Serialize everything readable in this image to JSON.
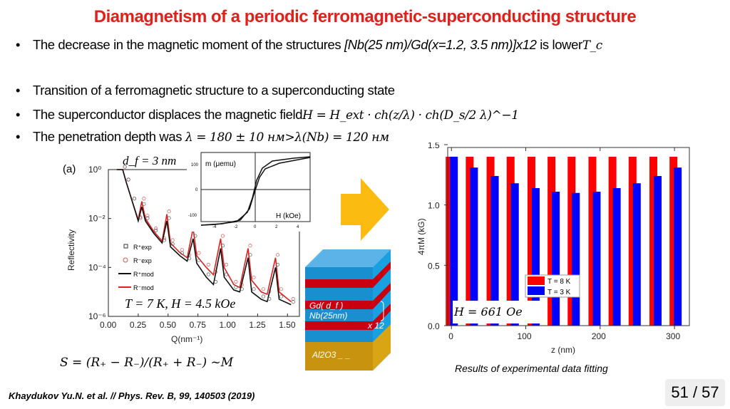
{
  "title": "Diamagnetism of a periodic ferromagnetic-superconducting structure",
  "bullets": [
    {
      "text": "The decrease in the magnetic moment of the structures ",
      "italic": "[Nb(25 nm)/Gd(x=1.2, 3.5 nm)]x12",
      "tail": " is lower",
      "math": "T_c"
    },
    {
      "text": "Transition of a ferromagnetic structure to a superconducting state"
    },
    {
      "text": "The superconductor displaces the magnetic field",
      "math": "H = H_ext · ch(z/λ) · ch(D_s/2 λ)^−1"
    },
    {
      "text": "The penetration depth was ",
      "math": "λ = 180 ± 10 нм>λ(Nb) = 120 нм"
    }
  ],
  "left_panel": {
    "panel_label": "(a)",
    "annotation_df": "d_f = 3 nm",
    "annotation_conditions": "T = 7 К, H = 4.5 kOe",
    "formula": "S = (R₊ − R₋)/(R₊ + R₋) ~M"
  },
  "inset": {
    "ylabel": "m (μemu)",
    "xlabel": "H (kOe)",
    "yticks": [
      "100",
      "0",
      "-100"
    ],
    "xticks": [
      "-4",
      "-2",
      "0",
      "2",
      "4"
    ]
  },
  "structure": {
    "layer_gd": "Gd( d_f )",
    "layer_nb": "Nb(25nm)",
    "repeat": "x 12",
    "substrate": "Al2O3 _ _",
    "colors": {
      "nb": "#1a8fd0",
      "gd": "#c8000f",
      "substrate": "#c8930e"
    }
  },
  "arrow_color": "#fbbb10",
  "caption": "Results of experimental data fitting",
  "citation": "Khaydukov Yu.N. et al. // Phys. Rev. B, 99, 140503 (2019)",
  "page": "51 / 57",
  "chart_data": [
    {
      "type": "line",
      "xlabel": "Q(nm⁻¹)",
      "ylabel": "Reflectivity",
      "xlim": [
        0,
        1.6
      ],
      "ylim": [
        1e-06,
        1
      ],
      "yscale": "log",
      "xticks": [
        "0.00",
        "0.25",
        "0.50",
        "0.75",
        "1.00",
        "1.25",
        "1.50"
      ],
      "yticks": [
        "10⁰",
        "10⁻²",
        "10⁻⁴",
        "10⁻⁶"
      ],
      "legend": [
        "R⁺exp",
        "R⁻exp",
        "R⁺mod",
        "R⁻mod"
      ],
      "legend_position": "left",
      "series": [
        {
          "name": "R⁻mod",
          "color": "#e02020",
          "points": [
            [
              0.07,
              1
            ],
            [
              0.12,
              1
            ],
            [
              0.15,
              0.3
            ],
            [
              0.2,
              0.05
            ],
            [
              0.25,
              0.009
            ],
            [
              0.28,
              0.05
            ],
            [
              0.31,
              0.01
            ],
            [
              0.38,
              0.003
            ],
            [
              0.45,
              0.0012
            ],
            [
              0.49,
              0.015
            ],
            [
              0.52,
              0.001
            ],
            [
              0.6,
              0.0004
            ],
            [
              0.66,
              0.00025
            ],
            [
              0.71,
              0.004
            ],
            [
              0.74,
              0.0003
            ],
            [
              0.82,
              0.0001
            ],
            [
              0.88,
              5e-05
            ],
            [
              0.94,
              0.0015
            ],
            [
              0.97,
              0.0001
            ],
            [
              1.05,
              2e-05
            ],
            [
              1.1,
              1.5e-05
            ],
            [
              1.17,
              0.0006
            ],
            [
              1.2,
              3e-05
            ],
            [
              1.28,
              1e-05
            ],
            [
              1.33,
              8e-06
            ],
            [
              1.4,
              0.00025
            ],
            [
              1.43,
              1e-05
            ],
            [
              1.53,
              4e-06
            ]
          ]
        },
        {
          "name": "R⁺mod",
          "color": "#111111",
          "points": [
            [
              0.07,
              1
            ],
            [
              0.12,
              1
            ],
            [
              0.15,
              0.3
            ],
            [
              0.2,
              0.05
            ],
            [
              0.25,
              0.008
            ],
            [
              0.28,
              0.03
            ],
            [
              0.31,
              0.008
            ],
            [
              0.38,
              0.0025
            ],
            [
              0.45,
              0.001
            ],
            [
              0.49,
              0.008
            ],
            [
              0.52,
              0.0007
            ],
            [
              0.6,
              0.0003
            ],
            [
              0.66,
              0.00018
            ],
            [
              0.71,
              0.0015
            ],
            [
              0.74,
              0.00015
            ],
            [
              0.82,
              4e-05
            ],
            [
              0.88,
              2e-05
            ],
            [
              0.94,
              0.0006
            ],
            [
              0.97,
              4e-05
            ],
            [
              1.05,
              1.2e-05
            ],
            [
              1.1,
              1e-05
            ],
            [
              1.17,
              0.00025
            ],
            [
              1.2,
              1e-05
            ],
            [
              1.28,
              5e-06
            ],
            [
              1.33,
              4e-06
            ],
            [
              1.4,
              0.0001
            ],
            [
              1.43,
              5e-06
            ],
            [
              1.53,
              3e-06
            ]
          ]
        }
      ]
    },
    {
      "type": "bar",
      "xlabel": "z (nm)",
      "ylabel": "4πM (kG)",
      "xlim": [
        -5,
        320
      ],
      "ylim": [
        0,
        1.5
      ],
      "xticks": [
        "0",
        "100",
        "200",
        "300"
      ],
      "yticks": [
        "0.0",
        "0.5",
        "1.0",
        "1.5"
      ],
      "annotation": "H = 661 Oe",
      "legend_position": "center",
      "x": [
        0,
        27,
        55,
        82,
        110,
        137,
        164,
        192,
        219,
        246,
        274,
        301
      ],
      "series": [
        {
          "name": "T = 8 K",
          "color": "#ff0000",
          "values": [
            1.4,
            1.4,
            1.4,
            1.4,
            1.4,
            1.4,
            1.4,
            1.4,
            1.4,
            1.4,
            1.4,
            1.4
          ]
        },
        {
          "name": "T = 3 K",
          "color": "#0000ff",
          "values": [
            1.4,
            1.31,
            1.24,
            1.18,
            1.14,
            1.11,
            1.1,
            1.11,
            1.14,
            1.18,
            1.24,
            1.31
          ]
        }
      ]
    }
  ]
}
